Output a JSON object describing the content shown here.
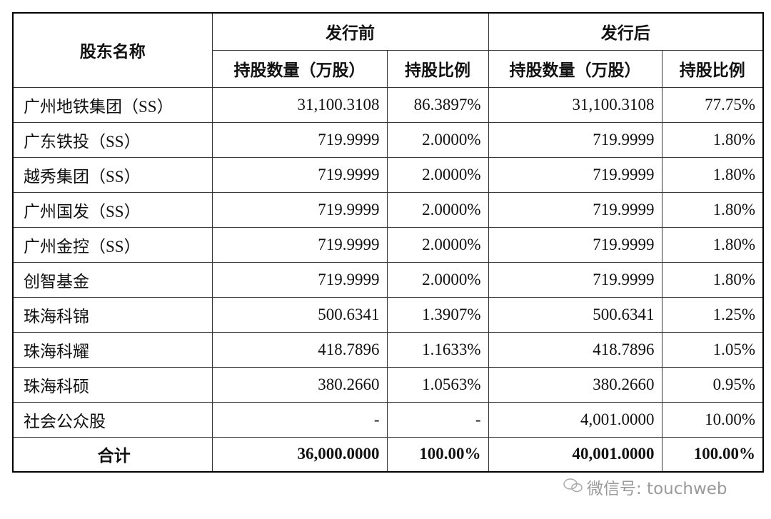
{
  "table": {
    "header": {
      "name": "股东名称",
      "before": "发行前",
      "after": "发行后",
      "shares_before": "持股数量（万股）",
      "ratio_before": "持股比例",
      "shares_after": "持股数量（万股）",
      "ratio_after": "持股比例"
    },
    "rows": [
      [
        "广州地铁集团（SS）",
        "31,100.3108",
        "86.3897%",
        "31,100.3108",
        "77.75%"
      ],
      [
        "广东铁投（SS）",
        "719.9999",
        "2.0000%",
        "719.9999",
        "1.80%"
      ],
      [
        "越秀集团（SS）",
        "719.9999",
        "2.0000%",
        "719.9999",
        "1.80%"
      ],
      [
        "广州国发（SS）",
        "719.9999",
        "2.0000%",
        "719.9999",
        "1.80%"
      ],
      [
        "广州金控（SS）",
        "719.9999",
        "2.0000%",
        "719.9999",
        "1.80%"
      ],
      [
        "创智基金",
        "719.9999",
        "2.0000%",
        "719.9999",
        "1.80%"
      ],
      [
        "珠海科锦",
        "500.6341",
        "1.3907%",
        "500.6341",
        "1.25%"
      ],
      [
        "珠海科耀",
        "418.7896",
        "1.1633%",
        "418.7896",
        "1.05%"
      ],
      [
        "珠海科硕",
        "380.2660",
        "1.0563%",
        "380.2660",
        "0.95%"
      ],
      [
        "社会公众股",
        "-",
        "-",
        "4,001.0000",
        "10.00%"
      ]
    ],
    "total": [
      "合计",
      "36,000.0000",
      "100.00%",
      "40,001.0000",
      "100.00%"
    ]
  },
  "watermark": "微信号: touchweb"
}
